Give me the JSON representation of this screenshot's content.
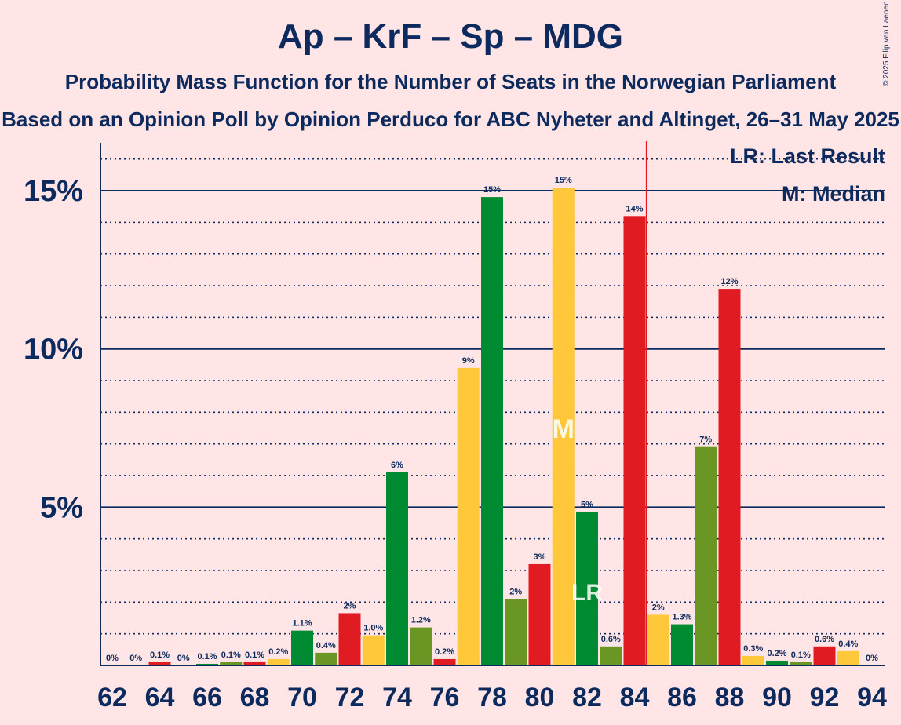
{
  "header": {
    "title": "Ap – KrF – Sp – MDG",
    "subtitle": "Probability Mass Function for the Number of Seats in the Norwegian Parliament",
    "subtitle2": "Based on an Opinion Poll by Opinion Perduco for ABC Nyheter and Altinget, 26–31 May 2025",
    "copyright": "© 2025 Filip van Laenen"
  },
  "legend": {
    "last_result": "LR: Last Result",
    "median": "M: Median"
  },
  "colors": {
    "background": "#FFE5E5",
    "text": "#0C2A5E",
    "ap": "#E01B22",
    "krf": "#FFC83A",
    "sp": "#008A32",
    "mdg": "#6A9623",
    "lr_line": "#E01B22"
  },
  "chart_data": {
    "type": "bar",
    "title": "Ap – KrF – Sp – MDG",
    "xlabel": "",
    "ylabel": "",
    "ylim": [
      0,
      16.5
    ],
    "y_ticks": [
      5,
      10,
      15
    ],
    "y_tick_labels": [
      "5%",
      "10%",
      "15%"
    ],
    "x_tick_labels": [
      "62",
      "64",
      "66",
      "68",
      "70",
      "72",
      "74",
      "76",
      "78",
      "80",
      "82",
      "84",
      "86",
      "88",
      "90",
      "92",
      "94"
    ],
    "grid": "horizontal",
    "legend_position": "top-right",
    "last_result": 85,
    "median": 81,
    "median_marker": "M",
    "last_result_marker": "LR",
    "bars": [
      {
        "seats": 62,
        "value": 0,
        "label": "0%",
        "party": "sp"
      },
      {
        "seats": 63,
        "value": 0,
        "label": "0%",
        "party": "mdg"
      },
      {
        "seats": 64,
        "value": 0.1,
        "label": "0.1%",
        "party": "ap"
      },
      {
        "seats": 65,
        "value": 0,
        "label": "0%",
        "party": "krf"
      },
      {
        "seats": 66,
        "value": 0.05,
        "label": "0.1%",
        "party": "sp"
      },
      {
        "seats": 67,
        "value": 0.1,
        "label": "0.1%",
        "party": "mdg"
      },
      {
        "seats": 68,
        "value": 0.1,
        "label": "0.1%",
        "party": "ap"
      },
      {
        "seats": 69,
        "value": 0.2,
        "label": "0.2%",
        "party": "krf"
      },
      {
        "seats": 70,
        "value": 1.1,
        "label": "1.1%",
        "party": "sp"
      },
      {
        "seats": 71,
        "value": 0.4,
        "label": "0.4%",
        "party": "mdg"
      },
      {
        "seats": 72,
        "value": 1.65,
        "label": "2%",
        "party": "ap"
      },
      {
        "seats": 73,
        "value": 0.95,
        "label": "1.0%",
        "party": "krf"
      },
      {
        "seats": 74,
        "value": 6.1,
        "label": "6%",
        "party": "sp"
      },
      {
        "seats": 75,
        "value": 1.2,
        "label": "1.2%",
        "party": "mdg"
      },
      {
        "seats": 76,
        "value": 0.2,
        "label": "0.2%",
        "party": "ap"
      },
      {
        "seats": 77,
        "value": 9.4,
        "label": "9%",
        "party": "krf"
      },
      {
        "seats": 78,
        "value": 14.8,
        "label": "15%",
        "party": "sp"
      },
      {
        "seats": 79,
        "value": 2.1,
        "label": "2%",
        "party": "mdg"
      },
      {
        "seats": 80,
        "value": 3.2,
        "label": "3%",
        "party": "ap"
      },
      {
        "seats": 81,
        "value": 15.1,
        "label": "15%",
        "party": "krf"
      },
      {
        "seats": 82,
        "value": 4.85,
        "label": "5%",
        "party": "sp"
      },
      {
        "seats": 83,
        "value": 0.6,
        "label": "0.6%",
        "party": "mdg"
      },
      {
        "seats": 84,
        "value": 14.2,
        "label": "14%",
        "party": "ap"
      },
      {
        "seats": 85,
        "value": 1.6,
        "label": "2%",
        "party": "krf"
      },
      {
        "seats": 86,
        "value": 1.3,
        "label": "1.3%",
        "party": "sp"
      },
      {
        "seats": 87,
        "value": 6.9,
        "label": "7%",
        "party": "mdg"
      },
      {
        "seats": 88,
        "value": 11.9,
        "label": "12%",
        "party": "ap"
      },
      {
        "seats": 89,
        "value": 0.3,
        "label": "0.3%",
        "party": "krf"
      },
      {
        "seats": 90,
        "value": 0.15,
        "label": "0.2%",
        "party": "sp"
      },
      {
        "seats": 91,
        "value": 0.1,
        "label": "0.1%",
        "party": "mdg"
      },
      {
        "seats": 92,
        "value": 0.6,
        "label": "0.6%",
        "party": "ap"
      },
      {
        "seats": 93,
        "value": 0.45,
        "label": "0.4%",
        "party": "krf"
      },
      {
        "seats": 94,
        "value": 0,
        "label": "0%",
        "party": "sp"
      }
    ]
  }
}
